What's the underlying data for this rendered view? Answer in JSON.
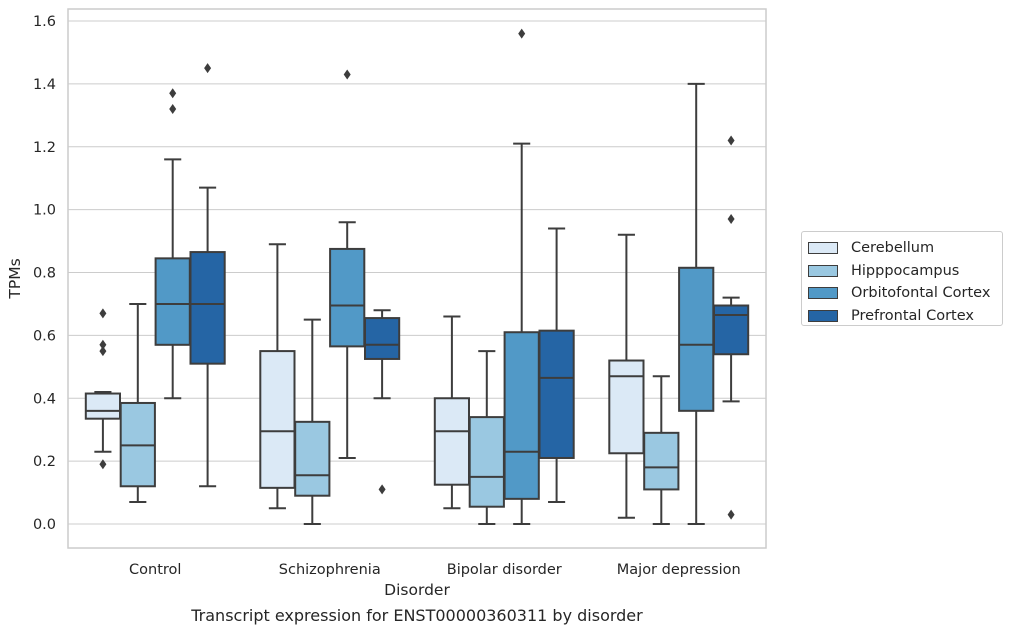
{
  "chart_data": {
    "type": "box",
    "caption": "Transcript expression for ENST00000360311 by disorder",
    "xlabel": "Disorder",
    "ylabel": "TPMs",
    "ylim": [
      -0.075,
      1.64
    ],
    "yticks": [
      "0.0",
      "0.2",
      "0.4",
      "0.6",
      "0.8",
      "1.0",
      "1.2",
      "1.4",
      "1.6"
    ],
    "grid": true,
    "legend_position": "right",
    "categories": [
      "Control",
      "Schizophrenia",
      "Bipolar disorder",
      "Major depression"
    ],
    "series": [
      {
        "name": "Cerebellum",
        "color": "#dbe9f6",
        "boxes": [
          {
            "whisker_low": 0.23,
            "q1": 0.335,
            "median": 0.36,
            "q3": 0.415,
            "whisker_high": 0.42,
            "outliers": [
              0.67,
              0.57,
              0.55,
              0.19
            ]
          },
          {
            "whisker_low": 0.05,
            "q1": 0.115,
            "median": 0.295,
            "q3": 0.55,
            "whisker_high": 0.89,
            "outliers": []
          },
          {
            "whisker_low": 0.05,
            "q1": 0.125,
            "median": 0.295,
            "q3": 0.4,
            "whisker_high": 0.66,
            "outliers": []
          },
          {
            "whisker_low": 0.02,
            "q1": 0.225,
            "median": 0.47,
            "q3": 0.52,
            "whisker_high": 0.92,
            "outliers": []
          }
        ]
      },
      {
        "name": "Hipppocampus",
        "color": "#9ac8e1",
        "boxes": [
          {
            "whisker_low": 0.07,
            "q1": 0.12,
            "median": 0.25,
            "q3": 0.385,
            "whisker_high": 0.7,
            "outliers": []
          },
          {
            "whisker_low": 0.0,
            "q1": 0.09,
            "median": 0.155,
            "q3": 0.325,
            "whisker_high": 0.65,
            "outliers": []
          },
          {
            "whisker_low": 0.0,
            "q1": 0.055,
            "median": 0.15,
            "q3": 0.34,
            "whisker_high": 0.55,
            "outliers": []
          },
          {
            "whisker_low": 0.0,
            "q1": 0.11,
            "median": 0.18,
            "q3": 0.29,
            "whisker_high": 0.47,
            "outliers": []
          }
        ]
      },
      {
        "name": "Orbitofontal Cortex",
        "color": "#5199c7",
        "boxes": [
          {
            "whisker_low": 0.4,
            "q1": 0.57,
            "median": 0.7,
            "q3": 0.845,
            "whisker_high": 1.16,
            "outliers": [
              1.37,
              1.32
            ]
          },
          {
            "whisker_low": 0.21,
            "q1": 0.565,
            "median": 0.695,
            "q3": 0.875,
            "whisker_high": 0.96,
            "outliers": [
              1.43
            ]
          },
          {
            "whisker_low": 0.0,
            "q1": 0.08,
            "median": 0.23,
            "q3": 0.61,
            "whisker_high": 1.21,
            "outliers": [
              1.56
            ]
          },
          {
            "whisker_low": 0.0,
            "q1": 0.36,
            "median": 0.57,
            "q3": 0.815,
            "whisker_high": 1.4,
            "outliers": []
          }
        ]
      },
      {
        "name": "Prefrontal Cortex",
        "color": "#2565a5",
        "boxes": [
          {
            "whisker_low": 0.12,
            "q1": 0.51,
            "median": 0.7,
            "q3": 0.865,
            "whisker_high": 1.07,
            "outliers": [
              1.45
            ]
          },
          {
            "whisker_low": 0.4,
            "q1": 0.525,
            "median": 0.57,
            "q3": 0.655,
            "whisker_high": 0.68,
            "outliers": [
              0.11
            ]
          },
          {
            "whisker_low": 0.07,
            "q1": 0.21,
            "median": 0.465,
            "q3": 0.615,
            "whisker_high": 0.94,
            "outliers": []
          },
          {
            "whisker_low": 0.39,
            "q1": 0.54,
            "median": 0.665,
            "q3": 0.695,
            "whisker_high": 0.72,
            "outliers": [
              1.22,
              0.97,
              0.03
            ]
          }
        ]
      }
    ]
  }
}
